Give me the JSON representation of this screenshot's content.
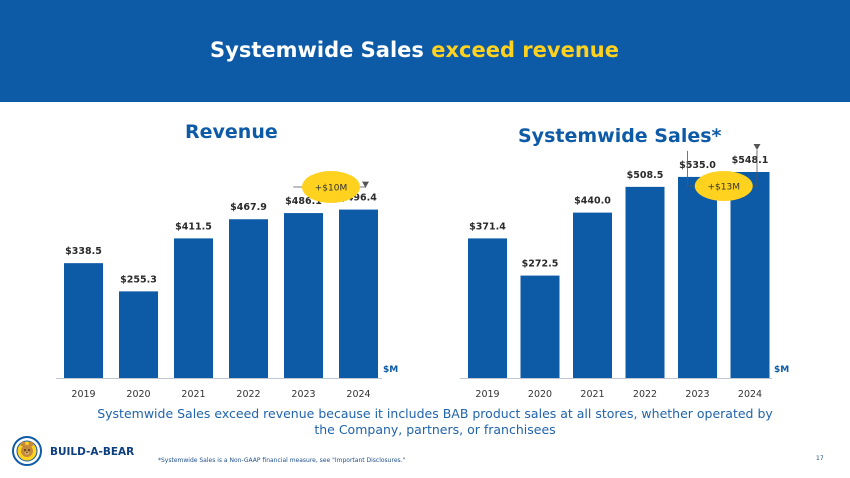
{
  "header": {
    "title_part1": "Systemwide Sales ",
    "title_part2": "exceed revenue",
    "background_color": "#0d5aa7",
    "accent_color": "#ffd21f"
  },
  "chart_data": [
    {
      "type": "bar",
      "title": "Revenue",
      "categories": [
        "2019",
        "2020",
        "2021",
        "2022",
        "2023",
        "2024"
      ],
      "values": [
        338.5,
        255.3,
        411.5,
        467.9,
        486.1,
        496.4
      ],
      "value_labels": [
        "$338.5",
        "$255.3",
        "$411.5",
        "$467.9",
        "$486.1",
        "$496.4"
      ],
      "unit_label": "$M",
      "annotation": {
        "text": "+$10M",
        "from_category": "2023",
        "to_category": "2024"
      },
      "bar_color": "#0d5aa7",
      "annotation_color": "#ffd21f",
      "ylim": [
        0,
        560
      ],
      "grid": false
    },
    {
      "type": "bar",
      "title": "Systemwide Sales*",
      "categories": [
        "2019",
        "2020",
        "2021",
        "2022",
        "2023",
        "2024"
      ],
      "values": [
        371.4,
        272.5,
        440.0,
        508.5,
        535.0,
        548.1
      ],
      "value_labels": [
        "$371.4",
        "$272.5",
        "$440.0",
        "$508.5",
        "$535.0",
        "$548.1"
      ],
      "unit_label": "$M",
      "annotation": {
        "text": "+$13M",
        "from_category": "2023",
        "to_category": "2024"
      },
      "bar_color": "#0d5aa7",
      "annotation_color": "#ffd21f",
      "ylim": [
        0,
        580
      ],
      "grid": false
    }
  ],
  "caption": "Systemwide Sales exceed revenue because it includes BAB product sales at all stores, whether operated by the Company, partners, or franchisees",
  "brand": {
    "name": "BUILD-A-BEAR",
    "logo_text": "BUILD-A-BEAR"
  },
  "footnote": "*Systemwide Sales is a Non-GAAP financial measure, see \"Important Disclosures.\"",
  "page_number": "17"
}
